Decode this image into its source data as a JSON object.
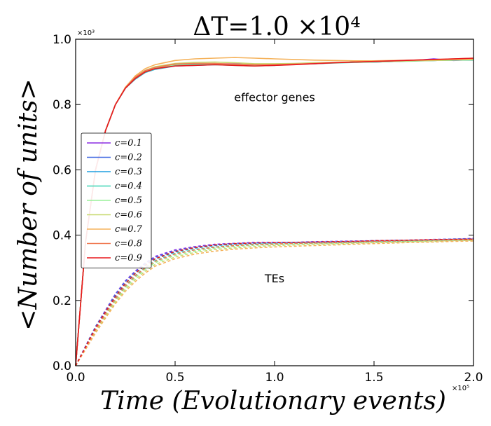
{
  "chart_data": {
    "type": "line",
    "title": "ΔT=1.0 ×10⁴",
    "xlabel": "Time (Evolutionary events)",
    "ylabel": "<Number of units>",
    "x_multiplier": "×10⁵",
    "y_multiplier": "×10³",
    "xlim": [
      0,
      2.0
    ],
    "ylim": [
      0,
      1.0
    ],
    "xticks": [
      "0.0",
      "0.5",
      "1.0",
      "1.5",
      "2.0"
    ],
    "yticks": [
      "0.0",
      "0.2",
      "0.4",
      "0.6",
      "0.8",
      "1.0"
    ],
    "grid": false,
    "legend_position": "center-left",
    "annotations": [
      {
        "text": "effector genes",
        "x": 1.0,
        "y": 0.81
      },
      {
        "text": "TEs",
        "x": 1.0,
        "y": 0.255
      }
    ],
    "x": [
      0,
      0.05,
      0.1,
      0.15,
      0.2,
      0.25,
      0.3,
      0.35,
      0.4,
      0.5,
      0.6,
      0.7,
      0.8,
      0.9,
      1.0,
      1.1,
      1.2,
      1.3,
      1.4,
      1.5,
      1.6,
      1.7,
      1.8,
      1.9,
      2.0
    ],
    "series": [
      {
        "name": "c=0.1",
        "color": "#8a2be2",
        "effector_genes": [
          0.0,
          0.38,
          0.6,
          0.72,
          0.8,
          0.85,
          0.88,
          0.9,
          0.91,
          0.92,
          0.925,
          0.924,
          0.925,
          0.922,
          0.92,
          0.925,
          0.925,
          0.928,
          0.93,
          0.93,
          0.932,
          0.935,
          0.94,
          0.935,
          0.938
        ],
        "tes": [
          0.0,
          0.06,
          0.12,
          0.17,
          0.22,
          0.26,
          0.29,
          0.315,
          0.335,
          0.355,
          0.365,
          0.372,
          0.375,
          0.378,
          0.378,
          0.378,
          0.38,
          0.381,
          0.382,
          0.383,
          0.384,
          0.385,
          0.387,
          0.388,
          0.39
        ]
      },
      {
        "name": "c=0.2",
        "color": "#4169e1",
        "effector_genes": [
          0.0,
          0.38,
          0.6,
          0.72,
          0.8,
          0.85,
          0.88,
          0.9,
          0.91,
          0.92,
          0.922,
          0.925,
          0.922,
          0.92,
          0.922,
          0.925,
          0.926,
          0.928,
          0.93,
          0.932,
          0.933,
          0.935,
          0.935,
          0.937,
          0.94
        ],
        "tes": [
          0.0,
          0.06,
          0.12,
          0.168,
          0.218,
          0.258,
          0.288,
          0.312,
          0.332,
          0.352,
          0.363,
          0.37,
          0.374,
          0.376,
          0.377,
          0.378,
          0.379,
          0.38,
          0.381,
          0.383,
          0.384,
          0.385,
          0.386,
          0.388,
          0.389
        ]
      },
      {
        "name": "c=0.3",
        "color": "#1e9fe0",
        "effector_genes": [
          0.0,
          0.38,
          0.6,
          0.72,
          0.8,
          0.85,
          0.878,
          0.898,
          0.908,
          0.918,
          0.92,
          0.922,
          0.922,
          0.92,
          0.922,
          0.924,
          0.926,
          0.928,
          0.93,
          0.93,
          0.932,
          0.934,
          0.935,
          0.936,
          0.936
        ],
        "tes": [
          0.0,
          0.058,
          0.116,
          0.164,
          0.212,
          0.252,
          0.283,
          0.307,
          0.327,
          0.348,
          0.36,
          0.368,
          0.372,
          0.375,
          0.376,
          0.377,
          0.378,
          0.379,
          0.38,
          0.382,
          0.383,
          0.384,
          0.385,
          0.387,
          0.388
        ]
      },
      {
        "name": "c=0.4",
        "color": "#3cd6b4",
        "effector_genes": [
          0.0,
          0.38,
          0.6,
          0.72,
          0.8,
          0.85,
          0.879,
          0.899,
          0.909,
          0.919,
          0.922,
          0.922,
          0.92,
          0.918,
          0.92,
          0.923,
          0.925,
          0.927,
          0.929,
          0.93,
          0.932,
          0.933,
          0.935,
          0.936,
          0.937
        ],
        "tes": [
          0.0,
          0.056,
          0.112,
          0.16,
          0.206,
          0.246,
          0.277,
          0.302,
          0.322,
          0.344,
          0.356,
          0.364,
          0.369,
          0.372,
          0.374,
          0.375,
          0.376,
          0.377,
          0.378,
          0.38,
          0.381,
          0.382,
          0.384,
          0.385,
          0.386
        ]
      },
      {
        "name": "c=0.5",
        "color": "#98f098",
        "effector_genes": [
          0.0,
          0.38,
          0.6,
          0.72,
          0.8,
          0.851,
          0.882,
          0.902,
          0.912,
          0.922,
          0.925,
          0.925,
          0.922,
          0.92,
          0.921,
          0.924,
          0.926,
          0.928,
          0.93,
          0.931,
          0.932,
          0.934,
          0.935,
          0.936,
          0.937
        ],
        "tes": [
          0.0,
          0.054,
          0.108,
          0.155,
          0.2,
          0.24,
          0.27,
          0.296,
          0.316,
          0.338,
          0.351,
          0.36,
          0.365,
          0.369,
          0.371,
          0.373,
          0.374,
          0.375,
          0.377,
          0.379,
          0.38,
          0.381,
          0.383,
          0.384,
          0.385
        ]
      },
      {
        "name": "c=0.6",
        "color": "#c7d96f",
        "effector_genes": [
          0.0,
          0.38,
          0.6,
          0.72,
          0.8,
          0.852,
          0.885,
          0.905,
          0.916,
          0.926,
          0.929,
          0.93,
          0.928,
          0.925,
          0.925,
          0.926,
          0.928,
          0.929,
          0.93,
          0.931,
          0.933,
          0.934,
          0.935,
          0.937,
          0.938
        ],
        "tes": [
          0.0,
          0.052,
          0.104,
          0.15,
          0.195,
          0.234,
          0.264,
          0.29,
          0.31,
          0.333,
          0.347,
          0.356,
          0.361,
          0.365,
          0.368,
          0.37,
          0.372,
          0.373,
          0.375,
          0.377,
          0.378,
          0.38,
          0.381,
          0.383,
          0.384
        ]
      },
      {
        "name": "c=0.7",
        "color": "#f5b25a",
        "effector_genes": [
          0.0,
          0.38,
          0.6,
          0.72,
          0.8,
          0.853,
          0.888,
          0.91,
          0.922,
          0.935,
          0.94,
          0.942,
          0.944,
          0.942,
          0.94,
          0.938,
          0.936,
          0.935,
          0.934,
          0.934,
          0.935,
          0.936,
          0.937,
          0.938,
          0.939
        ],
        "tes": [
          0.0,
          0.05,
          0.1,
          0.146,
          0.19,
          0.228,
          0.258,
          0.284,
          0.305,
          0.328,
          0.342,
          0.351,
          0.357,
          0.361,
          0.364,
          0.366,
          0.368,
          0.37,
          0.372,
          0.374,
          0.376,
          0.378,
          0.379,
          0.381,
          0.382
        ]
      },
      {
        "name": "c=0.8",
        "color": "#f07850",
        "effector_genes": [
          0.0,
          0.38,
          0.6,
          0.72,
          0.8,
          0.851,
          0.884,
          0.904,
          0.914,
          0.924,
          0.926,
          0.926,
          0.924,
          0.922,
          0.922,
          0.924,
          0.926,
          0.928,
          0.93,
          0.932,
          0.934,
          0.936,
          0.938,
          0.94,
          0.942
        ],
        "tes": [
          0.0,
          0.055,
          0.11,
          0.158,
          0.204,
          0.244,
          0.275,
          0.3,
          0.32,
          0.342,
          0.355,
          0.363,
          0.368,
          0.371,
          0.373,
          0.375,
          0.376,
          0.377,
          0.379,
          0.381,
          0.382,
          0.384,
          0.385,
          0.386,
          0.387
        ]
      },
      {
        "name": "c=0.9",
        "color": "#e8191e",
        "effector_genes": [
          0.0,
          0.38,
          0.6,
          0.72,
          0.8,
          0.85,
          0.88,
          0.9,
          0.91,
          0.918,
          0.92,
          0.922,
          0.92,
          0.918,
          0.92,
          0.922,
          0.925,
          0.928,
          0.93,
          0.932,
          0.934,
          0.936,
          0.938,
          0.94,
          0.942
        ],
        "tes": [
          0.0,
          0.058,
          0.116,
          0.165,
          0.212,
          0.252,
          0.283,
          0.308,
          0.328,
          0.35,
          0.362,
          0.37,
          0.374,
          0.376,
          0.377,
          0.378,
          0.379,
          0.38,
          0.381,
          0.383,
          0.384,
          0.385,
          0.386,
          0.387,
          0.388
        ]
      }
    ]
  }
}
